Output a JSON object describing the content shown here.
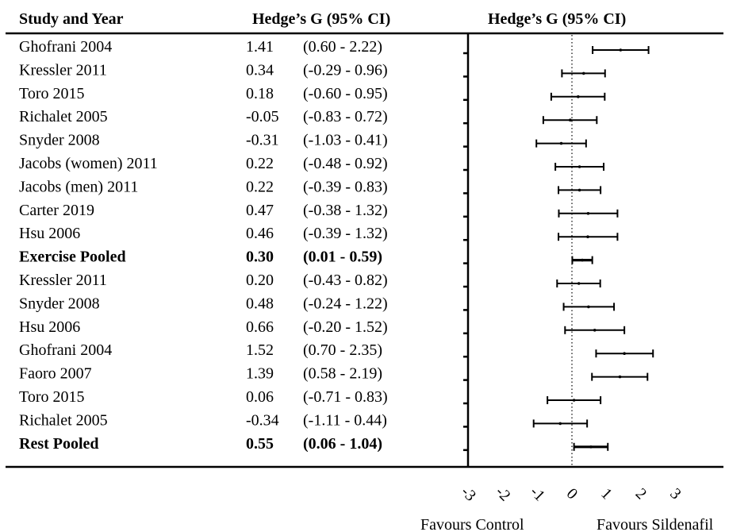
{
  "headers": {
    "study": "Study and Year",
    "g_ci": "Hedge’s G (95% CI)",
    "plot": "Hedge’s G (95% CI)"
  },
  "chart_data": {
    "type": "forest",
    "x_ticks": [
      "-3",
      "-2",
      "-1",
      "0",
      "1",
      "2",
      "3"
    ],
    "xlim": [
      -3,
      3
    ],
    "reference_line": 0,
    "labels": {
      "left": "Favours Control",
      "right": "Favours Sildenafil"
    },
    "rows": [
      {
        "study": "Ghofrani 2004",
        "g": "1.41",
        "ci": "(0.60 - 2.22)",
        "est": 1.41,
        "lo": 0.6,
        "hi": 2.22,
        "pooled": false
      },
      {
        "study": "Kressler 2011",
        "g": "0.34",
        "ci": "(-0.29 - 0.96)",
        "est": 0.34,
        "lo": -0.29,
        "hi": 0.96,
        "pooled": false
      },
      {
        "study": "Toro 2015",
        "g": "0.18",
        "ci": "(-0.60 - 0.95)",
        "est": 0.18,
        "lo": -0.6,
        "hi": 0.95,
        "pooled": false
      },
      {
        "study": "Richalet 2005",
        "g": "-0.05",
        "ci": "(-0.83 - 0.72)",
        "est": -0.05,
        "lo": -0.83,
        "hi": 0.72,
        "pooled": false
      },
      {
        "study": "Snyder 2008",
        "g": "-0.31",
        "ci": "(-1.03 - 0.41)",
        "est": -0.31,
        "lo": -1.03,
        "hi": 0.41,
        "pooled": false
      },
      {
        "study": "Jacobs (women) 2011",
        "g": "0.22",
        "ci": "(-0.48 - 0.92)",
        "est": 0.22,
        "lo": -0.48,
        "hi": 0.92,
        "pooled": false
      },
      {
        "study": "Jacobs (men) 2011",
        "g": "0.22",
        "ci": "(-0.39 - 0.83)",
        "est": 0.22,
        "lo": -0.39,
        "hi": 0.83,
        "pooled": false
      },
      {
        "study": "Carter 2019",
        "g": "0.47",
        "ci": "(-0.38 - 1.32)",
        "est": 0.47,
        "lo": -0.38,
        "hi": 1.32,
        "pooled": false
      },
      {
        "study": "Hsu 2006",
        "g": "0.46",
        "ci": "(-0.39 - 1.32)",
        "est": 0.46,
        "lo": -0.39,
        "hi": 1.32,
        "pooled": false
      },
      {
        "study": "Exercise Pooled",
        "g": "0.30",
        "ci": "(0.01 - 0.59)",
        "est": 0.3,
        "lo": 0.01,
        "hi": 0.59,
        "pooled": true
      },
      {
        "study": "Kressler 2011",
        "g": "0.20",
        "ci": "(-0.43 - 0.82)",
        "est": 0.2,
        "lo": -0.43,
        "hi": 0.82,
        "pooled": false
      },
      {
        "study": "Snyder 2008",
        "g": "0.48",
        "ci": "(-0.24 - 1.22)",
        "est": 0.48,
        "lo": -0.24,
        "hi": 1.22,
        "pooled": false
      },
      {
        "study": "Hsu 2006",
        "g": "0.66",
        "ci": "(-0.20 - 1.52)",
        "est": 0.66,
        "lo": -0.2,
        "hi": 1.52,
        "pooled": false
      },
      {
        "study": "Ghofrani 2004",
        "g": "1.52",
        "ci": "(0.70 - 2.35)",
        "est": 1.52,
        "lo": 0.7,
        "hi": 2.35,
        "pooled": false
      },
      {
        "study": "Faoro 2007",
        "g": "1.39",
        "ci": "(0.58 - 2.19)",
        "est": 1.39,
        "lo": 0.58,
        "hi": 2.19,
        "pooled": false
      },
      {
        "study": "Toro 2015",
        "g": "0.06",
        "ci": "(-0.71 - 0.83)",
        "est": 0.06,
        "lo": -0.71,
        "hi": 0.83,
        "pooled": false
      },
      {
        "study": "Richalet 2005",
        "g": "-0.34",
        "ci": "(-1.11 - 0.44)",
        "est": -0.34,
        "lo": -1.11,
        "hi": 0.44,
        "pooled": false
      },
      {
        "study": "Rest Pooled",
        "g": "0.55",
        "ci": "(0.06 - 1.04)",
        "est": 0.55,
        "lo": 0.06,
        "hi": 1.04,
        "pooled": true
      }
    ]
  }
}
